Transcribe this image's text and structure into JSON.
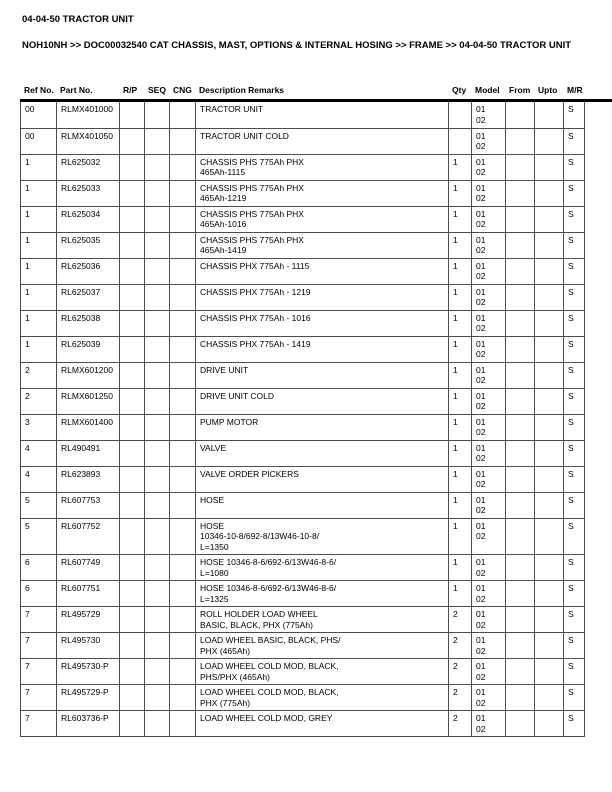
{
  "document": {
    "title": "04-04-50 TRACTOR UNIT",
    "breadcrumb": "NOH10NH >> DOC00032540 CAT CHASSIS, MAST, OPTIONS & INTERNAL HOSING >> FRAME >> 04-04-50 TRACTOR UNIT"
  },
  "parts_table": {
    "columns": [
      {
        "key": "ref",
        "label": "Ref No."
      },
      {
        "key": "part",
        "label": "Part No."
      },
      {
        "key": "rp",
        "label": "R/P"
      },
      {
        "key": "seq",
        "label": "SEQ"
      },
      {
        "key": "cng",
        "label": "CNG"
      },
      {
        "key": "desc",
        "label": "Description Remarks"
      },
      {
        "key": "qty",
        "label": "Qty"
      },
      {
        "key": "model",
        "label": "Model"
      },
      {
        "key": "from",
        "label": "From"
      },
      {
        "key": "upto",
        "label": "Upto"
      },
      {
        "key": "mr",
        "label": "M/R"
      }
    ],
    "rows": [
      {
        "ref": "00",
        "part": "RLMX401000",
        "rp": "",
        "seq": "",
        "cng": "",
        "desc": [
          "TRACTOR UNIT"
        ],
        "qty": "",
        "model": [
          "01",
          "02"
        ],
        "from": "",
        "upto": "",
        "mr": "S"
      },
      {
        "ref": "00",
        "part": "RLMX401050",
        "rp": "",
        "seq": "",
        "cng": "",
        "desc": [
          "TRACTOR UNIT COLD"
        ],
        "qty": "",
        "model": [
          "01",
          "02"
        ],
        "from": "",
        "upto": "",
        "mr": "S"
      },
      {
        "ref": "1",
        "part": "RL625032",
        "rp": "",
        "seq": "",
        "cng": "",
        "desc": [
          "CHASSIS PHS 775Ah PHX",
          "465Ah-1115"
        ],
        "qty": "1",
        "model": [
          "01",
          "02"
        ],
        "from": "",
        "upto": "",
        "mr": "S"
      },
      {
        "ref": "1",
        "part": "RL625033",
        "rp": "",
        "seq": "",
        "cng": "",
        "desc": [
          "CHASSIS PHS 775Ah PHX",
          "465Ah-1219"
        ],
        "qty": "1",
        "model": [
          "01",
          "02"
        ],
        "from": "",
        "upto": "",
        "mr": "S"
      },
      {
        "ref": "1",
        "part": "RL625034",
        "rp": "",
        "seq": "",
        "cng": "",
        "desc": [
          "CHASSIS PHS 775Ah PHX",
          "465Ah-1016"
        ],
        "qty": "1",
        "model": [
          "01",
          "02"
        ],
        "from": "",
        "upto": "",
        "mr": "S"
      },
      {
        "ref": "1",
        "part": "RL625035",
        "rp": "",
        "seq": "",
        "cng": "",
        "desc": [
          "CHASSIS PHS 775Ah PHX",
          "465Ah-1419"
        ],
        "qty": "1",
        "model": [
          "01",
          "02"
        ],
        "from": "",
        "upto": "",
        "mr": "S"
      },
      {
        "ref": "1",
        "part": "RL625036",
        "rp": "",
        "seq": "",
        "cng": "",
        "desc": [
          "CHASSIS PHX 775Ah - 1115"
        ],
        "qty": "1",
        "model": [
          "01",
          "02"
        ],
        "from": "",
        "upto": "",
        "mr": "S"
      },
      {
        "ref": "1",
        "part": "RL625037",
        "rp": "",
        "seq": "",
        "cng": "",
        "desc": [
          "CHASSIS PHX 775Ah - 1219"
        ],
        "qty": "1",
        "model": [
          "01",
          "02"
        ],
        "from": "",
        "upto": "",
        "mr": "S"
      },
      {
        "ref": "1",
        "part": "RL625038",
        "rp": "",
        "seq": "",
        "cng": "",
        "desc": [
          "CHASSIS PHX 775Ah - 1016"
        ],
        "qty": "1",
        "model": [
          "01",
          "02"
        ],
        "from": "",
        "upto": "",
        "mr": "S"
      },
      {
        "ref": "1",
        "part": "RL625039",
        "rp": "",
        "seq": "",
        "cng": "",
        "desc": [
          "CHASSIS PHX 775Ah - 1419"
        ],
        "qty": "1",
        "model": [
          "01",
          "02"
        ],
        "from": "",
        "upto": "",
        "mr": "S"
      },
      {
        "ref": "2",
        "part": "RLMX601200",
        "rp": "",
        "seq": "",
        "cng": "",
        "desc": [
          "DRIVE UNIT"
        ],
        "qty": "1",
        "model": [
          "01",
          "02"
        ],
        "from": "",
        "upto": "",
        "mr": "S"
      },
      {
        "ref": "2",
        "part": "RLMX601250",
        "rp": "",
        "seq": "",
        "cng": "",
        "desc": [
          "DRIVE UNIT COLD"
        ],
        "qty": "1",
        "model": [
          "01",
          "02"
        ],
        "from": "",
        "upto": "",
        "mr": "S"
      },
      {
        "ref": "3",
        "part": "RLMX601400",
        "rp": "",
        "seq": "",
        "cng": "",
        "desc": [
          "PUMP MOTOR"
        ],
        "qty": "1",
        "model": [
          "01",
          "02"
        ],
        "from": "",
        "upto": "",
        "mr": "S"
      },
      {
        "ref": "4",
        "part": "RL490491",
        "rp": "",
        "seq": "",
        "cng": "",
        "desc": [
          "VALVE"
        ],
        "qty": "1",
        "model": [
          "01",
          "02"
        ],
        "from": "",
        "upto": "",
        "mr": "S"
      },
      {
        "ref": "4",
        "part": "RL623893",
        "rp": "",
        "seq": "",
        "cng": "",
        "desc": [
          "VALVE ORDER PICKERS"
        ],
        "qty": "1",
        "model": [
          "01",
          "02"
        ],
        "from": "",
        "upto": "",
        "mr": "S"
      },
      {
        "ref": "5",
        "part": "RL607753",
        "rp": "",
        "seq": "",
        "cng": "",
        "desc": [
          "HOSE"
        ],
        "qty": "1",
        "model": [
          "01",
          "02"
        ],
        "from": "",
        "upto": "",
        "mr": "S"
      },
      {
        "ref": "5",
        "part": "RL607752",
        "rp": "",
        "seq": "",
        "cng": "",
        "desc": [
          "HOSE",
          "10346-10-8/692-8/13W46-10-8/",
          "L=1350"
        ],
        "qty": "1",
        "model": [
          "01",
          "02"
        ],
        "from": "",
        "upto": "",
        "mr": "S"
      },
      {
        "ref": "6",
        "part": "RL607749",
        "rp": "",
        "seq": "",
        "cng": "",
        "desc": [
          "HOSE 10346-8-6/692-6/13W46-8-6/",
          "L=1080"
        ],
        "qty": "1",
        "model": [
          "01",
          "02"
        ],
        "from": "",
        "upto": "",
        "mr": "S"
      },
      {
        "ref": "6",
        "part": "RL607751",
        "rp": "",
        "seq": "",
        "cng": "",
        "desc": [
          "HOSE 10346-8-6/692-6/13W46-8-6/",
          "L=1325"
        ],
        "qty": "1",
        "model": [
          "01",
          "02"
        ],
        "from": "",
        "upto": "",
        "mr": "S"
      },
      {
        "ref": "7",
        "part": "RL495729",
        "rp": "",
        "seq": "",
        "cng": "",
        "desc": [
          "ROLL HOLDER LOAD WHEEL",
          "BASIC, BLACK, PHX (775Ah)"
        ],
        "qty": "2",
        "model": [
          "01",
          "02"
        ],
        "from": "",
        "upto": "",
        "mr": "S"
      },
      {
        "ref": "7",
        "part": "RL495730",
        "rp": "",
        "seq": "",
        "cng": "",
        "desc": [
          "LOAD WHEEL BASIC, BLACK, PHS/",
          "PHX (465Ah)"
        ],
        "qty": "2",
        "model": [
          "01",
          "02"
        ],
        "from": "",
        "upto": "",
        "mr": "S"
      },
      {
        "ref": "7",
        "part": "RL495730-P",
        "rp": "",
        "seq": "",
        "cng": "",
        "desc": [
          "LOAD WHEEL COLD MOD, BLACK,",
          "PHS/PHX (465Ah)"
        ],
        "qty": "2",
        "model": [
          "01",
          "02"
        ],
        "from": "",
        "upto": "",
        "mr": "S"
      },
      {
        "ref": "7",
        "part": "RL495729-P",
        "rp": "",
        "seq": "",
        "cng": "",
        "desc": [
          "LOAD WHEEL COLD MOD, BLACK,",
          "PHX (775Ah)"
        ],
        "qty": "2",
        "model": [
          "01",
          "02"
        ],
        "from": "",
        "upto": "",
        "mr": "S"
      },
      {
        "ref": "7",
        "part": "RL603736-P",
        "rp": "",
        "seq": "",
        "cng": "",
        "desc": [
          "LOAD WHEEL COLD MOD, GREY"
        ],
        "qty": "2",
        "model": [
          "01",
          "02"
        ],
        "from": "",
        "upto": "",
        "mr": "S"
      }
    ]
  },
  "colors": {
    "text": "#000000",
    "border": "#4d4d4d",
    "header_rule": "#000000",
    "background": "#ffffff"
  }
}
